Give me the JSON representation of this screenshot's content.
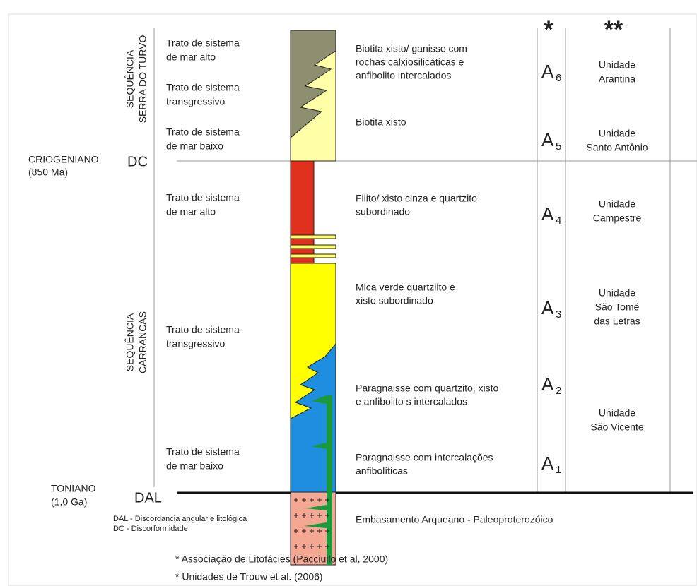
{
  "header": {
    "col_a": "*",
    "col_b": "**"
  },
  "ages": [
    {
      "name": "CRIOGENIANO",
      "date": "(850 Ma)",
      "code": "DC"
    },
    {
      "name": "TONIANO",
      "date": "(1,0 Ga)",
      "code": "DAL"
    }
  ],
  "sequences": [
    [
      "SEQUÊNCIA",
      "SERRA DO TURVO"
    ],
    [
      "SEQUÊNCIA",
      "CARRANCAS"
    ]
  ],
  "tracts": [
    [
      "Trato de sistema",
      "de mar alto"
    ],
    [
      "Trato de sistema",
      "transgressivo"
    ],
    [
      "Trato de sistema",
      "de mar baixo"
    ],
    [
      "Trato de sistema",
      "de mar alto"
    ],
    [
      "Trato de sistema",
      "transgressivo"
    ],
    [
      "Trato de sistema",
      "de mar baixo"
    ]
  ],
  "lithologies": [
    [
      "Biotita xisto/ ganisse com",
      "rochas calxiosilicáticas e",
      "anfibolito intercalados"
    ],
    [
      "Biotita xisto"
    ],
    [
      "Filito/ xisto cinza e quartzito",
      "subordinado"
    ],
    [
      "Mica verde quartziito e",
      "xisto subordinado"
    ],
    [
      "Paragnaisse com quartzito, xisto",
      "e anfibolito s intercalados"
    ],
    [
      "Paragnaisse com intercalações",
      "anfibolíticas"
    ]
  ],
  "associations": [
    {
      "letter": "A",
      "sub": "6"
    },
    {
      "letter": "A",
      "sub": "5"
    },
    {
      "letter": "A",
      "sub": "4"
    },
    {
      "letter": "A",
      "sub": "3"
    },
    {
      "letter": "A",
      "sub": "2"
    },
    {
      "letter": "A",
      "sub": "1"
    }
  ],
  "units": [
    [
      "Unidade",
      "Arantina"
    ],
    [
      "Unidade",
      "Santo Antônio"
    ],
    [
      "Unidade",
      "Campestre"
    ],
    [
      "Unidade",
      "São Tomé",
      "das Letras"
    ],
    [
      "Unidade",
      "São Vicente"
    ]
  ],
  "legend": [
    "DAL - Discordancia angular e litológica",
    "DC - Discorformidade"
  ],
  "basement": "Embasamento Arqueano - Paleoproterozóico",
  "footnotes": [
    "* Associação de Litofácies (Pacciullo et al, 2000)",
    "* Unidades de Trouw et al. (2006)"
  ]
}
